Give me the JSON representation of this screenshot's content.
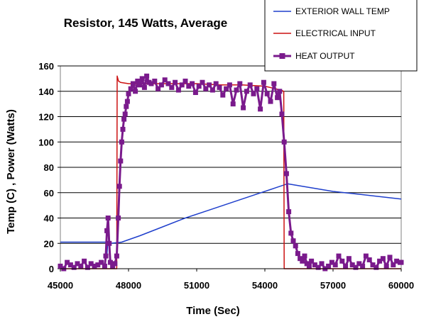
{
  "chart_data": {
    "type": "line",
    "title": "Resistor, 145 Watts,  Average",
    "xlabel": "Time (Sec)",
    "ylabel": "Temp (C) ,  Power (Watts)",
    "xlim": [
      45000,
      60000
    ],
    "ylim": [
      0,
      160
    ],
    "xticks": [
      45000,
      48000,
      51000,
      54000,
      57000,
      60000
    ],
    "yticks": [
      0,
      20,
      40,
      60,
      80,
      100,
      120,
      140,
      160
    ],
    "grid": "horizontal",
    "legend_position": "top-right",
    "series": [
      {
        "name": "EXTERIOR WALL TEMP",
        "color": "#1f3fcc",
        "marker": "none",
        "x": [
          45000,
          47000,
          47050,
          47080,
          47200,
          47700,
          48500,
          49500,
          50500,
          51500,
          52500,
          53500,
          54500,
          55000,
          56000,
          57000,
          58000,
          59000,
          60000
        ],
        "y": [
          21,
          21,
          10,
          20,
          20,
          21,
          26,
          33,
          40,
          46,
          52,
          58,
          64,
          67,
          64,
          61,
          59,
          57,
          55
        ]
      },
      {
        "name": "ELECTRICAL INPUT",
        "color": "#cc1111",
        "marker": "none",
        "x": [
          45000,
          47480,
          47500,
          47560,
          47650,
          48000,
          49000,
          50000,
          51000,
          52000,
          53000,
          54000,
          54700,
          54830,
          54850,
          60000
        ],
        "y": [
          0,
          0,
          152,
          148,
          147,
          146,
          146,
          146,
          146,
          145,
          145,
          144,
          141,
          140,
          0,
          0
        ]
      },
      {
        "name": "HEAT OUTPUT",
        "color": "#7a1a8c",
        "marker": "square",
        "x": [
          45000,
          45150,
          45300,
          45450,
          45600,
          45750,
          45900,
          46050,
          46200,
          46350,
          46500,
          46650,
          46800,
          46950,
          47000,
          47050,
          47100,
          47150,
          47200,
          47300,
          47400,
          47480,
          47550,
          47600,
          47650,
          47700,
          47750,
          47800,
          47850,
          47900,
          47950,
          48000,
          48100,
          48200,
          48300,
          48400,
          48500,
          48600,
          48700,
          48800,
          48900,
          49000,
          49150,
          49300,
          49450,
          49600,
          49750,
          49900,
          50050,
          50200,
          50350,
          50500,
          50650,
          50800,
          50950,
          51100,
          51250,
          51400,
          51550,
          51700,
          51850,
          52000,
          52150,
          52300,
          52450,
          52600,
          52750,
          52900,
          53050,
          53200,
          53350,
          53500,
          53650,
          53800,
          53950,
          54100,
          54250,
          54400,
          54550,
          54650,
          54750,
          54850,
          54950,
          55050,
          55150,
          55250,
          55350,
          55450,
          55550,
          55650,
          55750,
          55850,
          55950,
          56050,
          56200,
          56350,
          56500,
          56650,
          56800,
          56950,
          57100,
          57250,
          57400,
          57550,
          57700,
          57850,
          58000,
          58150,
          58300,
          58450,
          58600,
          58750,
          58900,
          59050,
          59200,
          59350,
          59500,
          59650,
          59800,
          59950,
          60000
        ],
        "y": [
          2,
          0,
          5,
          3,
          1,
          4,
          2,
          6,
          1,
          4,
          2,
          3,
          5,
          2,
          10,
          30,
          40,
          20,
          5,
          2,
          4,
          10,
          40,
          65,
          85,
          100,
          110,
          118,
          122,
          128,
          132,
          138,
          142,
          146,
          140,
          148,
          145,
          150,
          143,
          152,
          147,
          146,
          148,
          142,
          145,
          149,
          146,
          143,
          147,
          141,
          145,
          148,
          144,
          146,
          139,
          144,
          147,
          142,
          145,
          141,
          146,
          143,
          137,
          142,
          145,
          130,
          141,
          146,
          127,
          140,
          145,
          138,
          142,
          126,
          147,
          138,
          132,
          146,
          135,
          140,
          122,
          100,
          75,
          45,
          28,
          22,
          18,
          12,
          8,
          6,
          10,
          4,
          2,
          6,
          3,
          1,
          4,
          0,
          2,
          5,
          3,
          10,
          6,
          2,
          8,
          3,
          1,
          4,
          2,
          10,
          7,
          3,
          1,
          6,
          8,
          2,
          9,
          3,
          6,
          5,
          5
        ]
      }
    ]
  }
}
